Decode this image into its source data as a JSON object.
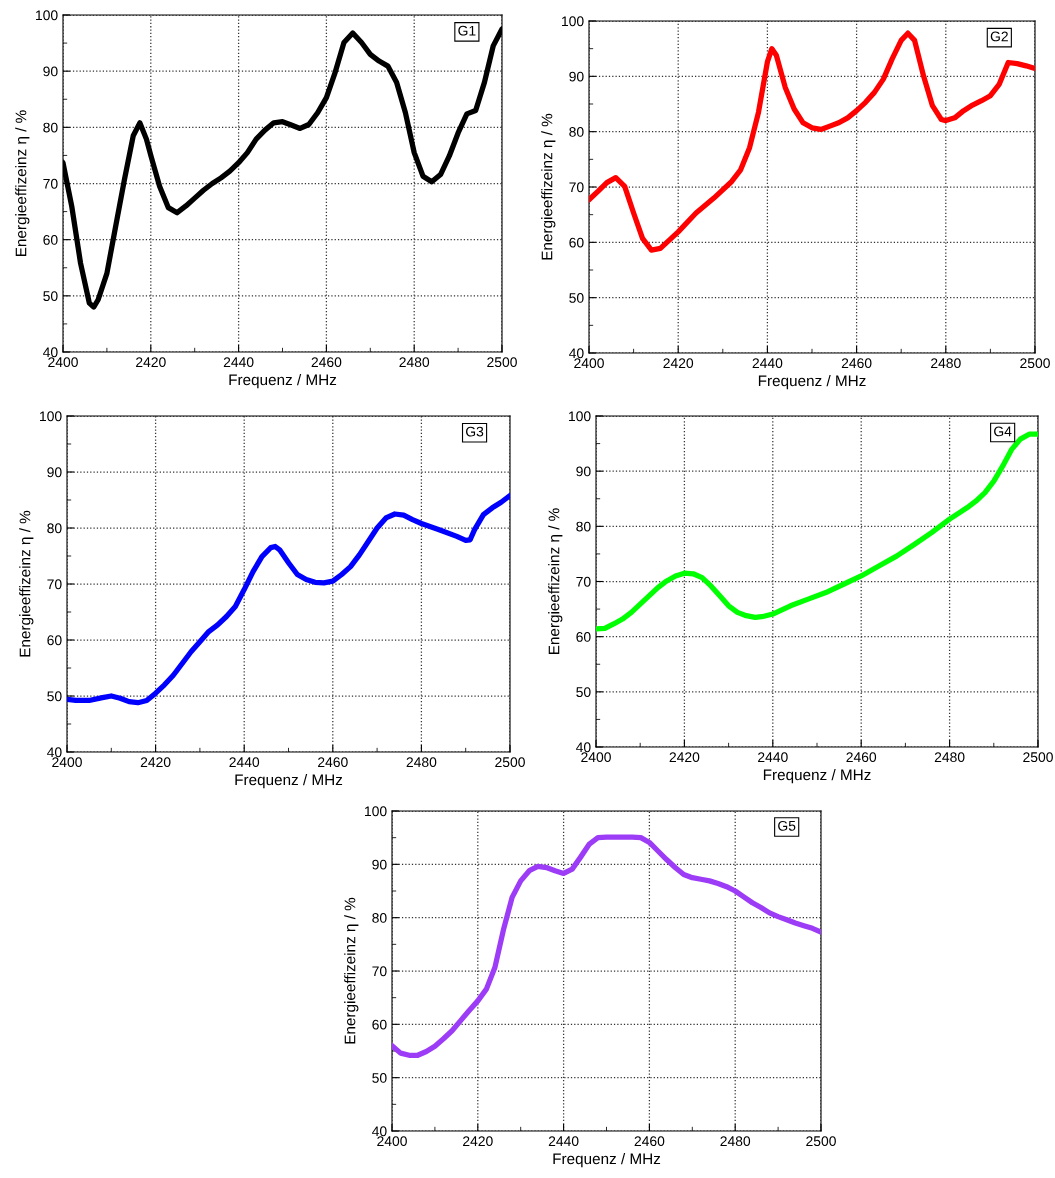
{
  "chart_data": [
    {
      "type": "line",
      "xlabel": "Frequenz / MHz",
      "ylabel": "Energieeffizeinz η / %",
      "annotations": [
        "G1"
      ],
      "xlim": [
        2400,
        2500
      ],
      "ylim": [
        40,
        100
      ],
      "xticks": [
        2400,
        2420,
        2440,
        2460,
        2480,
        2500
      ],
      "yticks": [
        40,
        50,
        60,
        70,
        80,
        90,
        100
      ],
      "grid": true,
      "x": [
        2400,
        2402,
        2404,
        2406,
        2407,
        2408,
        2410,
        2412,
        2414,
        2416,
        2417.5,
        2419,
        2420,
        2422,
        2424,
        2426,
        2428,
        2430,
        2432,
        2434,
        2436,
        2438,
        2440,
        2442,
        2444,
        2446,
        2448,
        2450,
        2452,
        2454,
        2456,
        2458,
        2460,
        2462,
        2464,
        2466,
        2468,
        2470,
        2472,
        2474,
        2476,
        2478,
        2480,
        2482,
        2484,
        2486,
        2488,
        2490,
        2492,
        2494,
        2496,
        2498,
        2500
      ],
      "series": [
        {
          "color": "#000000",
          "values": [
            73.7,
            65.9,
            55.8,
            48.7,
            48,
            49.3,
            54,
            62.4,
            70.7,
            78.5,
            80.8,
            77.9,
            75,
            69.5,
            65.7,
            64.8,
            66,
            67.4,
            68.8,
            70,
            71,
            72.2,
            73.7,
            75.5,
            77.9,
            79.5,
            80.8,
            81,
            80.4,
            79.8,
            80.5,
            82.6,
            85.3,
            89.8,
            95.1,
            96.8,
            95.1,
            93,
            91.8,
            90.9,
            88,
            82.6,
            75.5,
            71.3,
            70.3,
            71.6,
            74.9,
            79,
            82.4,
            83,
            88,
            94.5,
            97.5
          ]
        }
      ]
    },
    {
      "type": "line",
      "xlabel": "Frequenz / MHz",
      "ylabel": "Energieeffizeinz η / %",
      "annotations": [
        "G2"
      ],
      "xlim": [
        2400,
        2500
      ],
      "ylim": [
        40,
        100
      ],
      "xticks": [
        2400,
        2420,
        2440,
        2460,
        2480,
        2500
      ],
      "yticks": [
        40,
        50,
        60,
        70,
        80,
        90,
        100
      ],
      "grid": true,
      "x": [
        2400,
        2402,
        2404,
        2406,
        2408,
        2410,
        2412,
        2414,
        2416,
        2418,
        2420,
        2424,
        2428,
        2432,
        2434,
        2436,
        2438,
        2440,
        2441,
        2442,
        2444,
        2446,
        2448,
        2450,
        2452,
        2454,
        2456,
        2458,
        2460,
        2462,
        2464,
        2466,
        2468,
        2470,
        2471.5,
        2473,
        2475,
        2477,
        2479,
        2480,
        2482,
        2484,
        2486,
        2488,
        2490,
        2492,
        2494,
        2496,
        2498,
        2500
      ],
      "series": [
        {
          "color": "#ff0000",
          "values": [
            67.7,
            69.2,
            70.8,
            71.7,
            70.1,
            65.3,
            60.7,
            58.6,
            58.9,
            60.4,
            61.9,
            65.3,
            68,
            71,
            73.1,
            77.1,
            83.5,
            92.6,
            95,
            93.8,
            88,
            84.1,
            81.6,
            80.7,
            80.4,
            81,
            81.6,
            82.5,
            83.8,
            85.3,
            87.1,
            89.5,
            93.2,
            96.5,
            97.8,
            96.5,
            90.1,
            84.7,
            82.2,
            82,
            82.5,
            83.8,
            84.8,
            85.6,
            86.5,
            88.6,
            92.5,
            92.3,
            91.9,
            91.4
          ]
        }
      ]
    },
    {
      "type": "line",
      "xlabel": "Frequenz / MHz",
      "ylabel": "Energieeffizeinz η / %",
      "annotations": [
        "G3"
      ],
      "xlim": [
        2400,
        2500
      ],
      "ylim": [
        40,
        100
      ],
      "xticks": [
        2400,
        2420,
        2440,
        2460,
        2480,
        2500
      ],
      "yticks": [
        40,
        50,
        60,
        70,
        80,
        90,
        100
      ],
      "grid": true,
      "x": [
        2400,
        2402,
        2405,
        2408,
        2410,
        2412,
        2414,
        2416,
        2418,
        2420,
        2422,
        2424,
        2426,
        2428,
        2430,
        2432,
        2434,
        2436,
        2438,
        2440,
        2442,
        2444,
        2446,
        2447,
        2448,
        2450,
        2452,
        2454,
        2456,
        2458,
        2460,
        2462,
        2464,
        2466,
        2468,
        2470,
        2472,
        2474,
        2476,
        2478,
        2480,
        2484,
        2488,
        2490,
        2491,
        2492,
        2494,
        2496,
        2498,
        2500
      ],
      "series": [
        {
          "color": "#0000ff",
          "values": [
            49.4,
            49.2,
            49.2,
            49.7,
            50,
            49.6,
            49,
            48.8,
            49.2,
            50.5,
            52,
            53.7,
            55.8,
            57.9,
            59.7,
            61.5,
            62.7,
            64.2,
            66,
            69,
            72.2,
            74.9,
            76.5,
            76.7,
            76.1,
            73.8,
            71.7,
            70.8,
            70.3,
            70.2,
            70.5,
            71.7,
            73.1,
            75.2,
            77.6,
            80,
            81.8,
            82.5,
            82.3,
            81.5,
            80.8,
            79.7,
            78.5,
            77.8,
            77.9,
            79.7,
            82.4,
            83.6,
            84.6,
            85.8
          ]
        }
      ]
    },
    {
      "type": "line",
      "xlabel": "Frequenz / MHz",
      "ylabel": "Energieeffizeinz η / %",
      "annotations": [
        "G4"
      ],
      "xlim": [
        2400,
        2500
      ],
      "ylim": [
        40,
        100
      ],
      "xticks": [
        2400,
        2420,
        2440,
        2460,
        2480,
        2500
      ],
      "yticks": [
        40,
        50,
        60,
        70,
        80,
        90,
        100
      ],
      "grid": true,
      "x": [
        2400,
        2402,
        2404,
        2406,
        2408,
        2410,
        2412,
        2414,
        2416,
        2418,
        2420,
        2422,
        2424,
        2426,
        2428,
        2430,
        2432,
        2434,
        2436,
        2438,
        2440,
        2444,
        2448,
        2452,
        2456,
        2460,
        2464,
        2468,
        2472,
        2476,
        2480,
        2484,
        2486,
        2488,
        2490,
        2492,
        2494,
        2496,
        2498,
        2500
      ],
      "series": [
        {
          "color": "#00ff00",
          "values": [
            61.4,
            61.5,
            62.3,
            63.2,
            64.4,
            65.9,
            67.4,
            68.9,
            70.1,
            71,
            71.5,
            71.4,
            70.7,
            69.2,
            67.4,
            65.6,
            64.4,
            63.8,
            63.5,
            63.7,
            64.1,
            65.6,
            66.8,
            68,
            69.5,
            71,
            72.8,
            74.6,
            76.7,
            78.9,
            81.3,
            83.4,
            84.6,
            86.1,
            88.2,
            90.9,
            93.9,
            95.8,
            96.7,
            96.7
          ]
        }
      ]
    },
    {
      "type": "line",
      "xlabel": "Frequenz / MHz",
      "ylabel": "Energieeffizeinz η / %",
      "annotations": [
        "G5"
      ],
      "xlim": [
        2400,
        2500
      ],
      "ylim": [
        40,
        100
      ],
      "xticks": [
        2400,
        2420,
        2440,
        2460,
        2480,
        2500
      ],
      "yticks": [
        40,
        50,
        60,
        70,
        80,
        90,
        100
      ],
      "grid": true,
      "x": [
        2400,
        2402,
        2404,
        2406,
        2408,
        2410,
        2412,
        2414,
        2416,
        2418,
        2420,
        2422,
        2424,
        2426,
        2428,
        2430,
        2432,
        2434,
        2436,
        2438,
        2440,
        2442,
        2444,
        2446,
        2448,
        2450,
        2456,
        2458,
        2460,
        2462,
        2464,
        2466,
        2468,
        2470,
        2472,
        2474,
        2476,
        2478,
        2480,
        2482,
        2484,
        2486,
        2488,
        2490,
        2492,
        2494,
        2496,
        2498,
        2500
      ],
      "series": [
        {
          "color": "#9d3cf7",
          "values": [
            56,
            54.6,
            54.2,
            54.2,
            54.9,
            55.9,
            57.3,
            58.8,
            60.7,
            62.6,
            64.4,
            66.6,
            70.7,
            77.8,
            83.8,
            86.9,
            88.8,
            89.6,
            89.4,
            88.8,
            88.3,
            89.1,
            91.4,
            93.8,
            95,
            95.1,
            95.1,
            95,
            94.1,
            92.5,
            90.9,
            89.4,
            88.1,
            87.5,
            87.2,
            86.9,
            86.4,
            85.8,
            85,
            83.9,
            82.8,
            81.9,
            80.9,
            80.2,
            79.6,
            79,
            78.5,
            78,
            77.3
          ]
        }
      ]
    }
  ]
}
